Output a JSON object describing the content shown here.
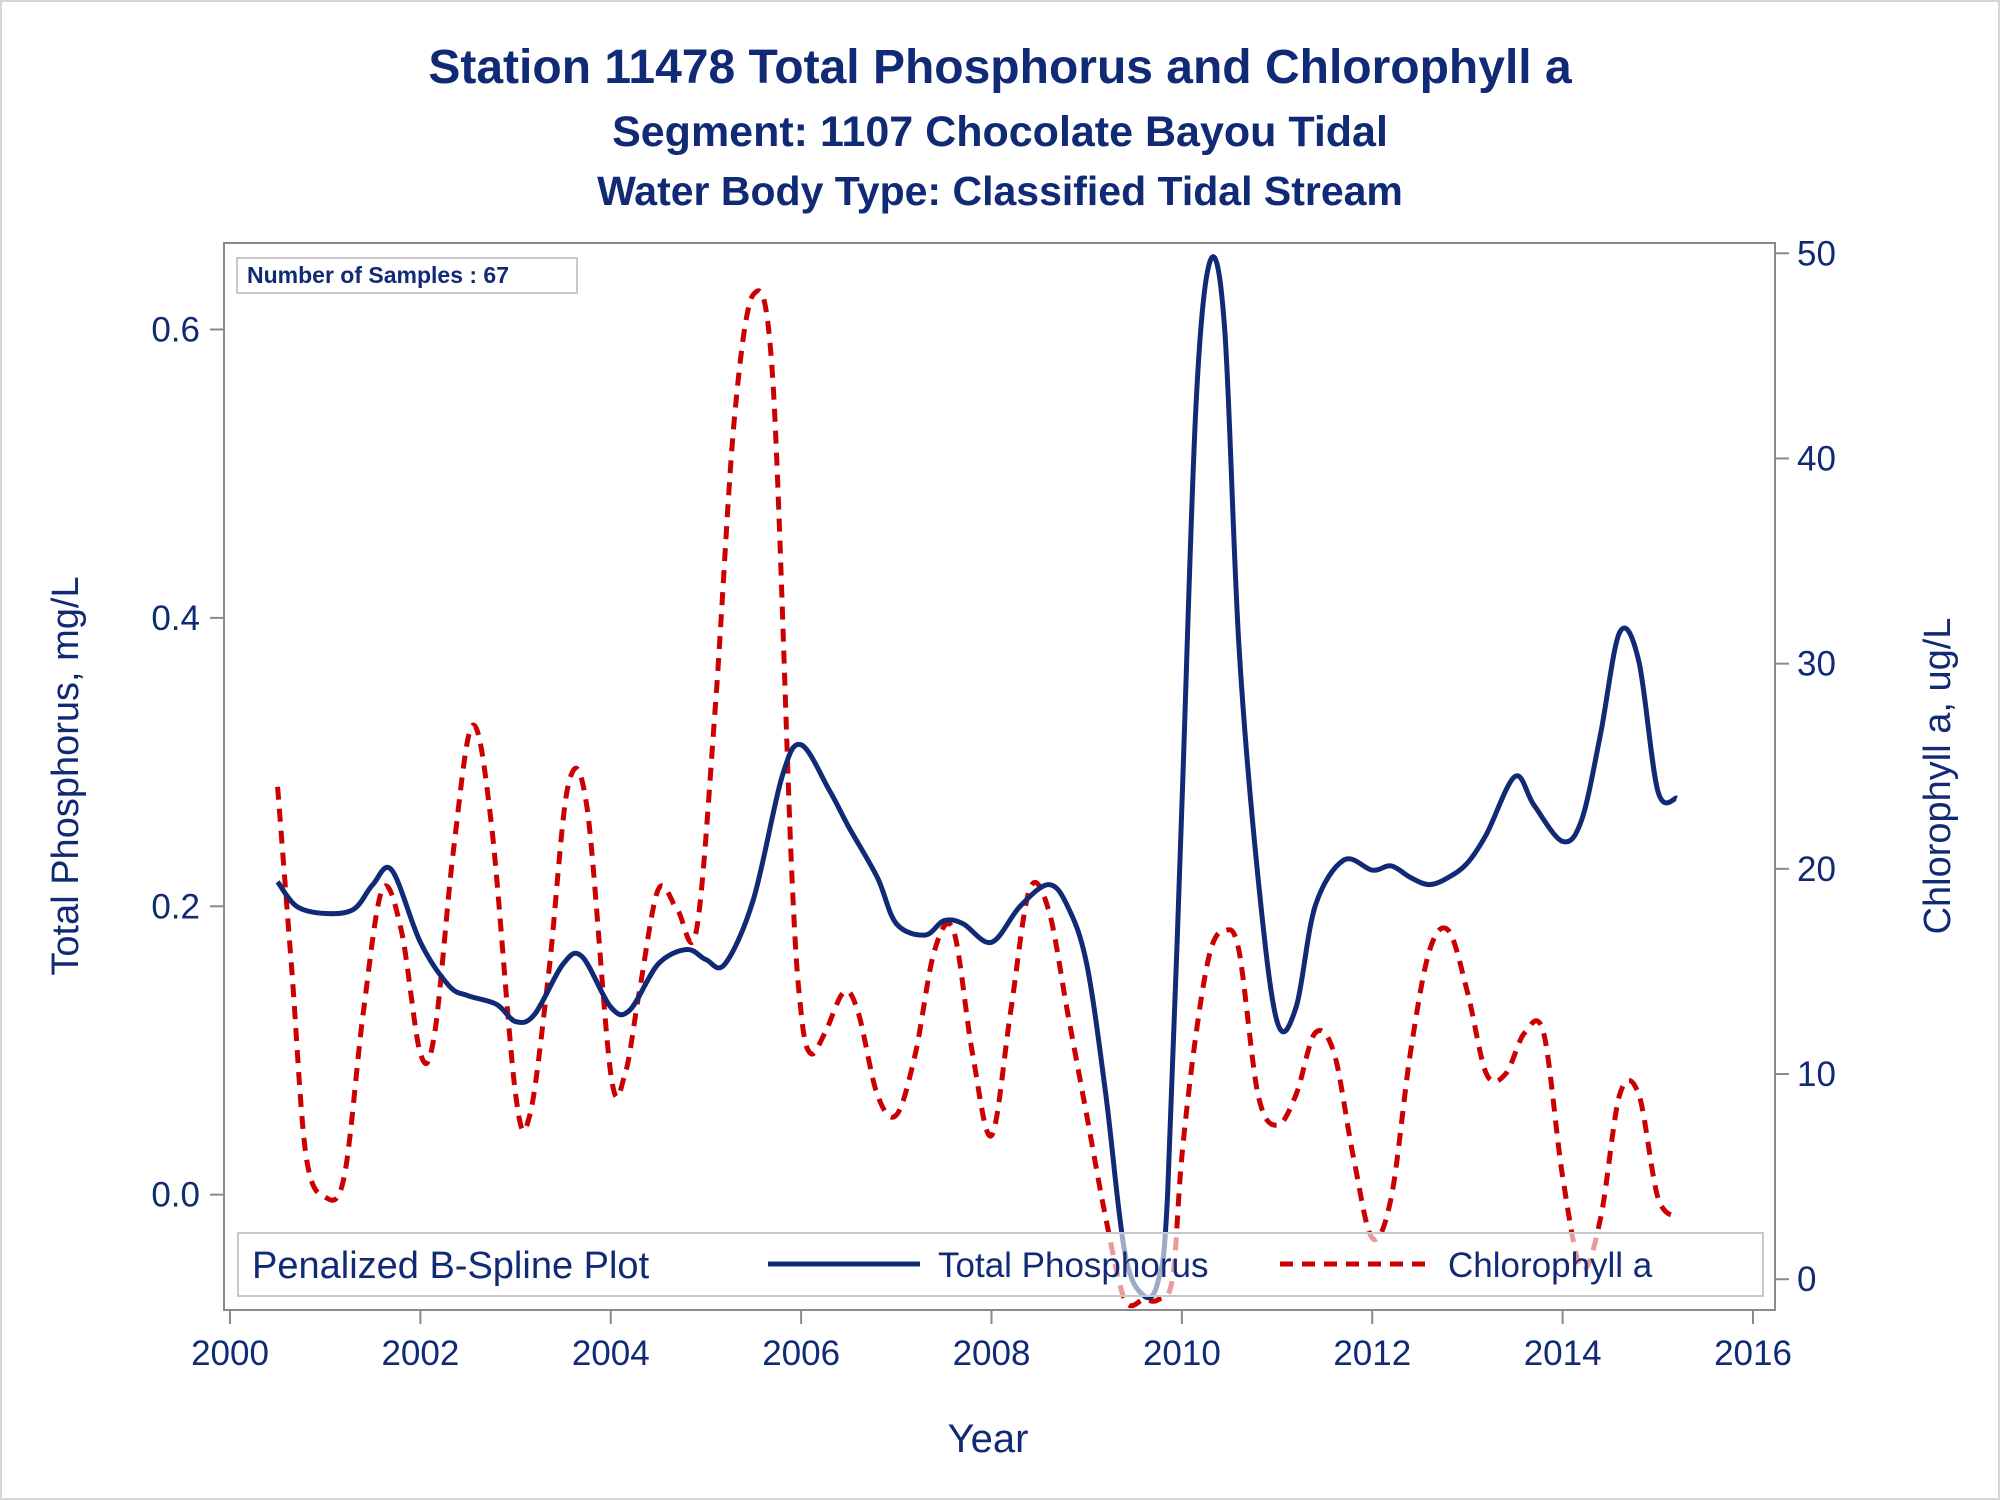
{
  "chart_data": {
    "type": "line",
    "title": "Station 11478  Total Phosphorus and Chlorophyll a",
    "subtitle": "Segment: 1107  Chocolate Bayou Tidal",
    "subtitle2": "Water Body Type: Classified Tidal Stream",
    "xlabel": "Year",
    "ylabel_left": "Total Phosphorus, mg/L",
    "ylabel_right": "Chlorophyll a, ug/L",
    "xlim": [
      2000,
      2016
    ],
    "ylim_left": [
      -0.08,
      0.66
    ],
    "ylim_right": [
      -1.5,
      50.5
    ],
    "x_ticks": [
      "2000",
      "2002",
      "2004",
      "2006",
      "2008",
      "2010",
      "2012",
      "2014",
      "2016"
    ],
    "y_ticks_left": [
      "0.0",
      "0.2",
      "0.4",
      "0.6"
    ],
    "y_ticks_right": [
      "0",
      "10",
      "20",
      "30",
      "40",
      "50"
    ],
    "annotation": "Number of Samples : 67",
    "legend": {
      "title": "Penalized B-Spline Plot",
      "placement": "bottom-inside",
      "entries": [
        "Total Phosphorus",
        "Chlorophyll a"
      ]
    },
    "grid": false,
    "colors": {
      "phosphorus": "#112a75",
      "chlorophyll": "#cc0000",
      "text": "#112a75"
    },
    "series": [
      {
        "name": "Total Phosphorus",
        "axis": "left",
        "style": "solid",
        "x": [
          2000.5,
          2000.7,
          2001.0,
          2001.3,
          2001.5,
          2001.7,
          2002.0,
          2002.3,
          2002.5,
          2002.8,
          2003.0,
          2003.2,
          2003.5,
          2003.7,
          2004.0,
          2004.2,
          2004.5,
          2004.8,
          2005.0,
          2005.2,
          2005.5,
          2005.8,
          2006.0,
          2006.3,
          2006.5,
          2006.8,
          2007.0,
          2007.3,
          2007.5,
          2007.7,
          2008.0,
          2008.3,
          2008.6,
          2008.8,
          2009.0,
          2009.2,
          2009.4,
          2009.6,
          2009.75,
          2009.85,
          2010.0,
          2010.15,
          2010.3,
          2010.45,
          2010.6,
          2010.8,
          2011.0,
          2011.2,
          2011.4,
          2011.7,
          2012.0,
          2012.2,
          2012.4,
          2012.6,
          2012.8,
          2013.0,
          2013.2,
          2013.5,
          2013.7,
          2014.0,
          2014.2,
          2014.4,
          2014.6,
          2014.8,
          2015.0,
          2015.2
        ],
        "values": [
          0.217,
          0.2,
          0.195,
          0.198,
          0.215,
          0.225,
          0.175,
          0.145,
          0.138,
          0.132,
          0.12,
          0.125,
          0.16,
          0.165,
          0.13,
          0.128,
          0.16,
          0.17,
          0.163,
          0.16,
          0.205,
          0.29,
          0.312,
          0.28,
          0.255,
          0.22,
          0.188,
          0.18,
          0.19,
          0.188,
          0.175,
          0.2,
          0.215,
          0.2,
          0.16,
          0.07,
          -0.04,
          -0.07,
          -0.06,
          0.0,
          0.27,
          0.55,
          0.648,
          0.6,
          0.38,
          0.22,
          0.12,
          0.13,
          0.2,
          0.232,
          0.225,
          0.228,
          0.22,
          0.215,
          0.22,
          0.23,
          0.25,
          0.29,
          0.27,
          0.245,
          0.26,
          0.32,
          0.39,
          0.37,
          0.28,
          0.275
        ]
      },
      {
        "name": "Chlorophyll a",
        "axis": "right",
        "style": "dashed",
        "x": [
          2000.5,
          2000.65,
          2000.8,
          2001.0,
          2001.2,
          2001.4,
          2001.6,
          2001.8,
          2002.0,
          2002.15,
          2002.35,
          2002.55,
          2002.75,
          2003.0,
          2003.15,
          2003.35,
          2003.55,
          2003.75,
          2004.0,
          2004.15,
          2004.3,
          2004.5,
          2004.7,
          2004.9,
          2005.1,
          2005.3,
          2005.5,
          2005.7,
          2005.9,
          2006.0,
          2006.1,
          2006.25,
          2006.45,
          2006.6,
          2006.8,
          2007.0,
          2007.2,
          2007.4,
          2007.6,
          2007.8,
          2008.0,
          2008.2,
          2008.4,
          2008.6,
          2008.8,
          2009.0,
          2009.2,
          2009.4,
          2009.6,
          2009.75,
          2009.9,
          2010.0,
          2010.15,
          2010.3,
          2010.45,
          2010.6,
          2010.8,
          2011.0,
          2011.2,
          2011.4,
          2011.6,
          2011.8,
          2012.0,
          2012.2,
          2012.4,
          2012.6,
          2012.8,
          2013.0,
          2013.2,
          2013.4,
          2013.6,
          2013.8,
          2014.0,
          2014.2,
          2014.4,
          2014.6,
          2014.8,
          2015.0,
          2015.2
        ],
        "values": [
          24,
          15,
          6,
          4,
          5,
          13,
          19,
          17,
          11,
          12,
          21,
          27,
          22,
          9,
          8,
          15,
          24,
          23,
          10,
          10,
          14,
          19,
          18,
          17,
          28,
          42,
          48,
          44,
          20,
          13,
          11,
          12,
          14,
          13,
          9,
          8,
          11,
          16,
          17,
          11,
          7,
          13,
          19,
          18,
          13,
          8,
          3,
          -1,
          -1,
          -1,
          0,
          6,
          12,
          16,
          17,
          16,
          9,
          7.5,
          9,
          12,
          11,
          6,
          2,
          4,
          11,
          16,
          17,
          14,
          10,
          10,
          12,
          12,
          5,
          0.5,
          3,
          9,
          9,
          4,
          3
        ]
      }
    ]
  }
}
